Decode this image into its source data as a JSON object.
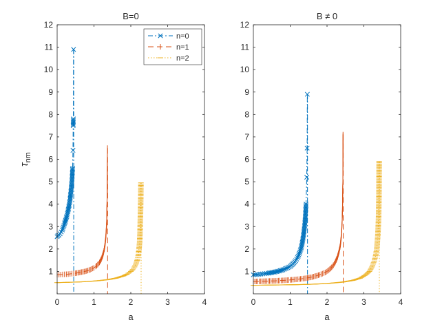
{
  "chart_data": [
    {
      "type": "line",
      "title": "B=0",
      "xlabel": "a",
      "ylabel": "τ",
      "ylabel_sub": "nm",
      "xlim": [
        0,
        4
      ],
      "ylim": [
        0,
        12
      ],
      "xticks": [
        "0",
        "1",
        "2",
        "3",
        "4"
      ],
      "yticks": [
        "1",
        "2",
        "3",
        "4",
        "5",
        "6",
        "7",
        "8",
        "9",
        "10",
        "11",
        "12"
      ],
      "legend": {
        "position": "top-right",
        "entries": [
          "n=0",
          "n=1",
          "n=2"
        ]
      },
      "series": [
        {
          "name": "n=0",
          "color": "#0072BD",
          "marker": "x",
          "dash": "dashdot",
          "asymptote": 0.45,
          "x": [
            0.0,
            0.02,
            0.05,
            0.08,
            0.11,
            0.14,
            0.17,
            0.2,
            0.23,
            0.26,
            0.29,
            0.31,
            0.33,
            0.35,
            0.37,
            0.385,
            0.4,
            0.41,
            0.42,
            0.43,
            0.435,
            0.44,
            0.445
          ],
          "y": [
            2.55,
            2.6,
            2.62,
            2.68,
            2.76,
            2.85,
            2.98,
            3.12,
            3.28,
            3.45,
            3.65,
            3.82,
            4.0,
            4.2,
            4.5,
            4.75,
            5.0,
            5.3,
            5.6,
            6.4,
            7.5,
            7.8,
            10.9
          ]
        },
        {
          "name": "n=1",
          "color": "#D95319",
          "marker": "|",
          "dash": "dashed",
          "asymptote": 1.37,
          "x": [
            0.0,
            0.1,
            0.2,
            0.3,
            0.4,
            0.5,
            0.6,
            0.7,
            0.8,
            0.9,
            1.0,
            1.05,
            1.1,
            1.15,
            1.2,
            1.23,
            1.26,
            1.28,
            1.3,
            1.32,
            1.34,
            1.35,
            1.36,
            1.365
          ],
          "y": [
            0.85,
            0.86,
            0.87,
            0.88,
            0.9,
            0.92,
            0.95,
            0.98,
            1.02,
            1.08,
            1.16,
            1.22,
            1.3,
            1.4,
            1.55,
            1.68,
            1.85,
            2.0,
            2.2,
            2.5,
            3.0,
            3.5,
            4.8,
            6.5
          ]
        },
        {
          "name": "n=2",
          "color": "#EDB120",
          "marker": "-",
          "dash": "dotted",
          "asymptote": 2.28,
          "x": [
            0.0,
            0.2,
            0.4,
            0.6,
            0.8,
            1.0,
            1.2,
            1.4,
            1.6,
            1.8,
            1.9,
            2.0,
            2.05,
            2.1,
            2.15,
            2.18,
            2.2,
            2.22,
            2.24,
            2.25,
            2.26,
            2.27,
            2.275
          ],
          "y": [
            0.5,
            0.51,
            0.52,
            0.53,
            0.55,
            0.57,
            0.6,
            0.64,
            0.7,
            0.8,
            0.88,
            1.0,
            1.08,
            1.2,
            1.38,
            1.55,
            1.7,
            1.95,
            2.3,
            2.7,
            3.4,
            4.2,
            4.95
          ]
        }
      ]
    },
    {
      "type": "line",
      "title": "B ≠ 0",
      "xlabel": "a",
      "ylabel": "",
      "xlim": [
        0,
        4
      ],
      "ylim": [
        0,
        12
      ],
      "xticks": [
        "0",
        "1",
        "2",
        "3",
        "4"
      ],
      "yticks": [
        "1",
        "2",
        "3",
        "4",
        "5",
        "6",
        "7",
        "8",
        "9",
        "10",
        "11",
        "12"
      ],
      "series": [
        {
          "name": "n=0",
          "color": "#0072BD",
          "marker": "x",
          "dash": "dashdot",
          "asymptote": 1.47,
          "x": [
            0.0,
            0.1,
            0.2,
            0.3,
            0.4,
            0.5,
            0.6,
            0.7,
            0.8,
            0.9,
            1.0,
            1.05,
            1.1,
            1.15,
            1.2,
            1.25,
            1.3,
            1.33,
            1.36,
            1.39,
            1.41,
            1.43,
            1.45,
            1.46,
            1.465
          ],
          "y": [
            0.85,
            0.86,
            0.88,
            0.9,
            0.92,
            0.95,
            0.98,
            1.02,
            1.07,
            1.14,
            1.22,
            1.3,
            1.38,
            1.48,
            1.62,
            1.8,
            2.05,
            2.3,
            2.6,
            3.0,
            3.4,
            4.0,
            5.2,
            6.5,
            8.9
          ]
        },
        {
          "name": "n=1",
          "color": "#D95319",
          "marker": "|",
          "dash": "dashed",
          "asymptote": 2.44,
          "x": [
            0.0,
            0.2,
            0.4,
            0.6,
            0.8,
            1.0,
            1.2,
            1.4,
            1.6,
            1.8,
            1.95,
            2.05,
            2.15,
            2.22,
            2.28,
            2.32,
            2.36,
            2.39,
            2.41,
            2.42,
            2.43,
            2.435
          ],
          "y": [
            0.55,
            0.56,
            0.57,
            0.58,
            0.6,
            0.62,
            0.65,
            0.69,
            0.75,
            0.85,
            0.95,
            1.06,
            1.22,
            1.4,
            1.62,
            1.85,
            2.15,
            2.6,
            3.2,
            3.8,
            5.0,
            7.1
          ]
        },
        {
          "name": "n=2",
          "color": "#EDB120",
          "marker": "-",
          "dash": "dotted",
          "asymptote": 3.42,
          "x": [
            0.0,
            0.4,
            0.8,
            1.2,
            1.6,
            2.0,
            2.4,
            2.7,
            2.9,
            3.05,
            3.15,
            3.22,
            3.28,
            3.32,
            3.35,
            3.38,
            3.4,
            3.41,
            3.415
          ],
          "y": [
            0.38,
            0.39,
            0.4,
            0.41,
            0.43,
            0.46,
            0.52,
            0.6,
            0.7,
            0.85,
            1.0,
            1.2,
            1.45,
            1.7,
            2.0,
            2.6,
            3.4,
            4.4,
            5.9
          ]
        }
      ]
    }
  ]
}
